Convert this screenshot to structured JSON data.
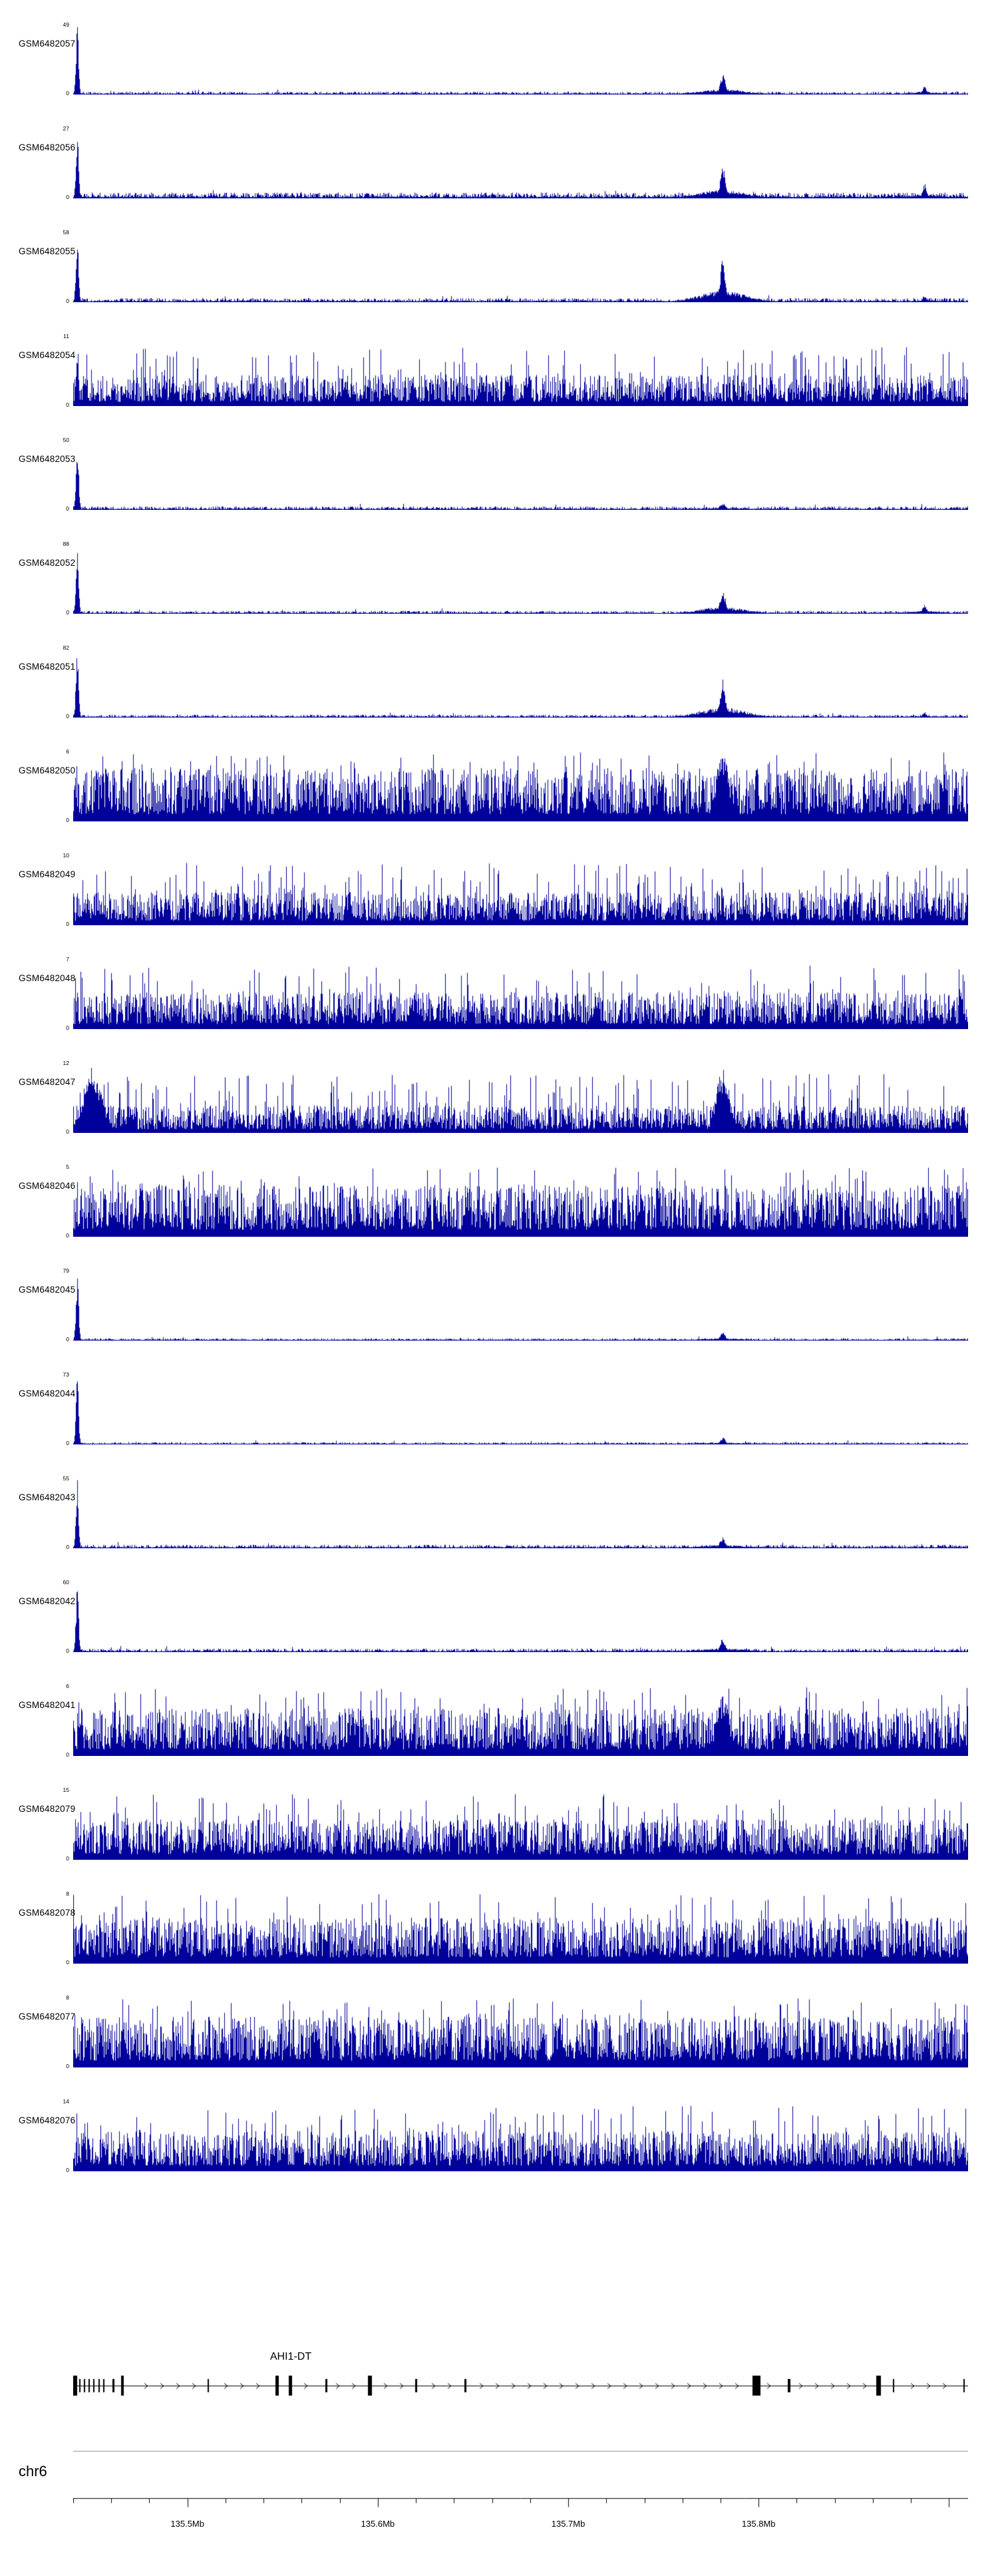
{
  "figure": {
    "background": "#ffffff",
    "text_color": "#000000",
    "signal_color": "#00009B",
    "gene_color": "#000000",
    "separator_color": "#9a9a9a"
  },
  "chart_data": {
    "type": "area",
    "subtype": "genome-browser-coverage-tracks",
    "chromosome": "chr6",
    "axis": {
      "start_mb": 135.44,
      "end_mb": 135.91,
      "unit": "Mb",
      "major_ticks_mb": [
        135.5,
        135.6,
        135.7,
        135.8
      ],
      "major_tick_labels": [
        "135.5Mb",
        "135.6Mb",
        "135.7Mb",
        "135.8Mb"
      ],
      "minor_tick_interval_mb": 0.02
    },
    "tracks": [
      {
        "name": "GSM6482057",
        "ymin": 0,
        "ymax": 49,
        "pattern": "sparse",
        "noise": 0.025,
        "peaks": [
          {
            "mb": 135.442,
            "h": 1.0,
            "w": 2
          },
          {
            "mb": 135.781,
            "h": 0.3,
            "w": 4
          },
          {
            "mb": 135.887,
            "h": 0.13,
            "w": 3
          }
        ]
      },
      {
        "name": "GSM6482056",
        "ymin": 0,
        "ymax": 27,
        "pattern": "sparse",
        "noise": 0.05,
        "peaks": [
          {
            "mb": 135.442,
            "h": 1.0,
            "w": 2
          },
          {
            "mb": 135.781,
            "h": 0.48,
            "w": 4
          },
          {
            "mb": 135.887,
            "h": 0.22,
            "w": 3
          }
        ]
      },
      {
        "name": "GSM6482055",
        "ymin": 0,
        "ymax": 58,
        "pattern": "sparse",
        "noise": 0.035,
        "peaks": [
          {
            "mb": 135.442,
            "h": 1.0,
            "w": 2
          },
          {
            "mb": 135.781,
            "h": 0.62,
            "w": 4
          },
          {
            "mb": 135.887,
            "h": 0.1,
            "w": 3
          }
        ]
      },
      {
        "name": "GSM6482054",
        "ymin": 0,
        "ymax": 11,
        "pattern": "dense",
        "base": 0.34,
        "spike": 0.85,
        "peaks": [
          {
            "mb": 135.442,
            "h": 1.0,
            "w": 2
          }
        ]
      },
      {
        "name": "GSM6482053",
        "ymin": 0,
        "ymax": 50,
        "pattern": "sparse",
        "noise": 0.03,
        "peaks": [
          {
            "mb": 135.442,
            "h": 1.0,
            "w": 2
          },
          {
            "mb": 135.781,
            "h": 0.1,
            "w": 5
          }
        ]
      },
      {
        "name": "GSM6482052",
        "ymin": 0,
        "ymax": 88,
        "pattern": "sparse",
        "noise": 0.025,
        "peaks": [
          {
            "mb": 135.442,
            "h": 1.0,
            "w": 2
          },
          {
            "mb": 135.781,
            "h": 0.38,
            "w": 4
          },
          {
            "mb": 135.887,
            "h": 0.15,
            "w": 3
          }
        ]
      },
      {
        "name": "GSM6482051",
        "ymin": 0,
        "ymax": 82,
        "pattern": "sparse",
        "noise": 0.025,
        "peaks": [
          {
            "mb": 135.442,
            "h": 1.0,
            "w": 2
          },
          {
            "mb": 135.781,
            "h": 0.55,
            "w": 4
          },
          {
            "mb": 135.887,
            "h": 0.08,
            "w": 3
          }
        ]
      },
      {
        "name": "GSM6482050",
        "ymin": 0,
        "ymax": 6,
        "pattern": "dense",
        "base": 0.58,
        "spike": 1.0,
        "peaks": [
          {
            "mb": 135.781,
            "h": 1.0,
            "w": 10
          }
        ]
      },
      {
        "name": "GSM6482049",
        "ymin": 0,
        "ymax": 10,
        "pattern": "dense",
        "base": 0.36,
        "spike": 0.9,
        "peaks": []
      },
      {
        "name": "GSM6482048",
        "ymin": 0,
        "ymax": 7,
        "pattern": "dense",
        "base": 0.4,
        "spike": 0.92,
        "peaks": []
      },
      {
        "name": "GSM6482047",
        "ymin": 0,
        "ymax": 12,
        "pattern": "dense",
        "base": 0.3,
        "spike": 0.85,
        "peaks": [
          {
            "mb": 135.45,
            "h": 0.95,
            "w": 14
          },
          {
            "mb": 135.781,
            "h": 0.95,
            "w": 10
          }
        ]
      },
      {
        "name": "GSM6482046",
        "ymin": 0,
        "ymax": 5,
        "pattern": "dense",
        "base": 0.56,
        "spike": 1.0,
        "peaks": []
      },
      {
        "name": "GSM6482045",
        "ymin": 0,
        "ymax": 79,
        "pattern": "sparse",
        "noise": 0.02,
        "peaks": [
          {
            "mb": 135.442,
            "h": 1.0,
            "w": 2
          },
          {
            "mb": 135.781,
            "h": 0.12,
            "w": 4
          }
        ]
      },
      {
        "name": "GSM6482044",
        "ymin": 0,
        "ymax": 73,
        "pattern": "sparse",
        "noise": 0.02,
        "peaks": [
          {
            "mb": 135.442,
            "h": 1.0,
            "w": 2
          },
          {
            "mb": 135.781,
            "h": 0.1,
            "w": 4
          }
        ]
      },
      {
        "name": "GSM6482043",
        "ymin": 0,
        "ymax": 55,
        "pattern": "sparse",
        "noise": 0.03,
        "peaks": [
          {
            "mb": 135.442,
            "h": 1.0,
            "w": 2
          },
          {
            "mb": 135.781,
            "h": 0.17,
            "w": 4
          }
        ]
      },
      {
        "name": "GSM6482042",
        "ymin": 0,
        "ymax": 60,
        "pattern": "sparse",
        "noise": 0.03,
        "peaks": [
          {
            "mb": 135.442,
            "h": 1.0,
            "w": 2
          },
          {
            "mb": 135.781,
            "h": 0.2,
            "w": 4
          }
        ]
      },
      {
        "name": "GSM6482041",
        "ymin": 0,
        "ymax": 6,
        "pattern": "dense",
        "base": 0.52,
        "spike": 1.0,
        "peaks": [
          {
            "mb": 135.781,
            "h": 0.9,
            "w": 10
          }
        ]
      },
      {
        "name": "GSM6482079",
        "ymin": 0,
        "ymax": 15,
        "pattern": "dense",
        "base": 0.44,
        "spike": 0.95,
        "peaks": []
      },
      {
        "name": "GSM6482078",
        "ymin": 0,
        "ymax": 8,
        "pattern": "dense",
        "base": 0.5,
        "spike": 1.0,
        "peaks": []
      },
      {
        "name": "GSM6482077",
        "ymin": 0,
        "ymax": 8,
        "pattern": "dense",
        "base": 0.55,
        "spike": 1.0,
        "peaks": []
      },
      {
        "name": "GSM6482076",
        "ymin": 0,
        "ymax": 14,
        "pattern": "dense",
        "base": 0.44,
        "spike": 0.95,
        "peaks": []
      }
    ],
    "gene_track": {
      "label": "AHI1-DT",
      "direction": "right",
      "exons": [
        {
          "mb": 135.441,
          "w": 7,
          "tall": true
        },
        {
          "mb": 135.4435,
          "w": 2,
          "tall": false
        },
        {
          "mb": 135.446,
          "w": 2,
          "tall": false
        },
        {
          "mb": 135.4485,
          "w": 2,
          "tall": false
        },
        {
          "mb": 135.451,
          "w": 2,
          "tall": false
        },
        {
          "mb": 135.4535,
          "w": 2,
          "tall": false
        },
        {
          "mb": 135.456,
          "w": 2,
          "tall": false
        },
        {
          "mb": 135.461,
          "w": 3,
          "tall": false
        },
        {
          "mb": 135.466,
          "w": 4,
          "tall": true
        },
        {
          "mb": 135.511,
          "w": 2,
          "tall": false
        },
        {
          "mb": 135.547,
          "w": 5,
          "tall": true
        },
        {
          "mb": 135.554,
          "w": 5,
          "tall": true
        },
        {
          "mb": 135.573,
          "w": 3,
          "tall": false
        },
        {
          "mb": 135.596,
          "w": 6,
          "tall": true
        },
        {
          "mb": 135.62,
          "w": 3,
          "tall": false
        },
        {
          "mb": 135.646,
          "w": 3,
          "tall": false
        },
        {
          "mb": 135.799,
          "w": 12,
          "tall": true
        },
        {
          "mb": 135.816,
          "w": 4,
          "tall": false
        },
        {
          "mb": 135.863,
          "w": 7,
          "tall": true
        },
        {
          "mb": 135.871,
          "w": 2,
          "tall": false
        },
        {
          "mb": 135.908,
          "w": 2,
          "tall": false
        }
      ]
    }
  }
}
